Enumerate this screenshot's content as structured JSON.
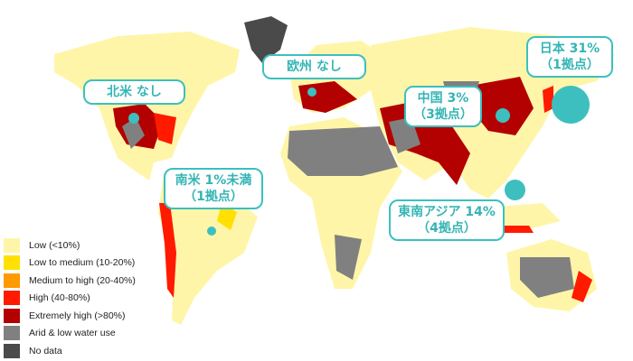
{
  "legend": [
    {
      "label": "Low (<10%)",
      "color": "#fff5a8"
    },
    {
      "label": "Low to medium (10-20%)",
      "color": "#ffe000"
    },
    {
      "label": "Medium to high (20-40%)",
      "color": "#ff9a00"
    },
    {
      "label": "High (40-80%)",
      "color": "#ff1a00"
    },
    {
      "label": "Extremely high (>80%)",
      "color": "#b30000"
    },
    {
      "label": "Arid & low water use",
      "color": "#808080"
    },
    {
      "label": "No data",
      "color": "#4a4a4a"
    }
  ],
  "callouts": {
    "north_america": {
      "line1": "北米 なし"
    },
    "europe": {
      "line1": "欧州 なし"
    },
    "china": {
      "line1": "中国 3%",
      "line2": "（3拠点）"
    },
    "japan": {
      "line1": "日本 31%",
      "line2": "（1拠点）"
    },
    "south_america": {
      "line1": "南米 1%未満",
      "line2": "（1拠点）"
    },
    "southeast_asia": {
      "line1": "東南アジア 14%",
      "line2": "（4拠点）"
    }
  },
  "accent_color": "#3dbfbf"
}
